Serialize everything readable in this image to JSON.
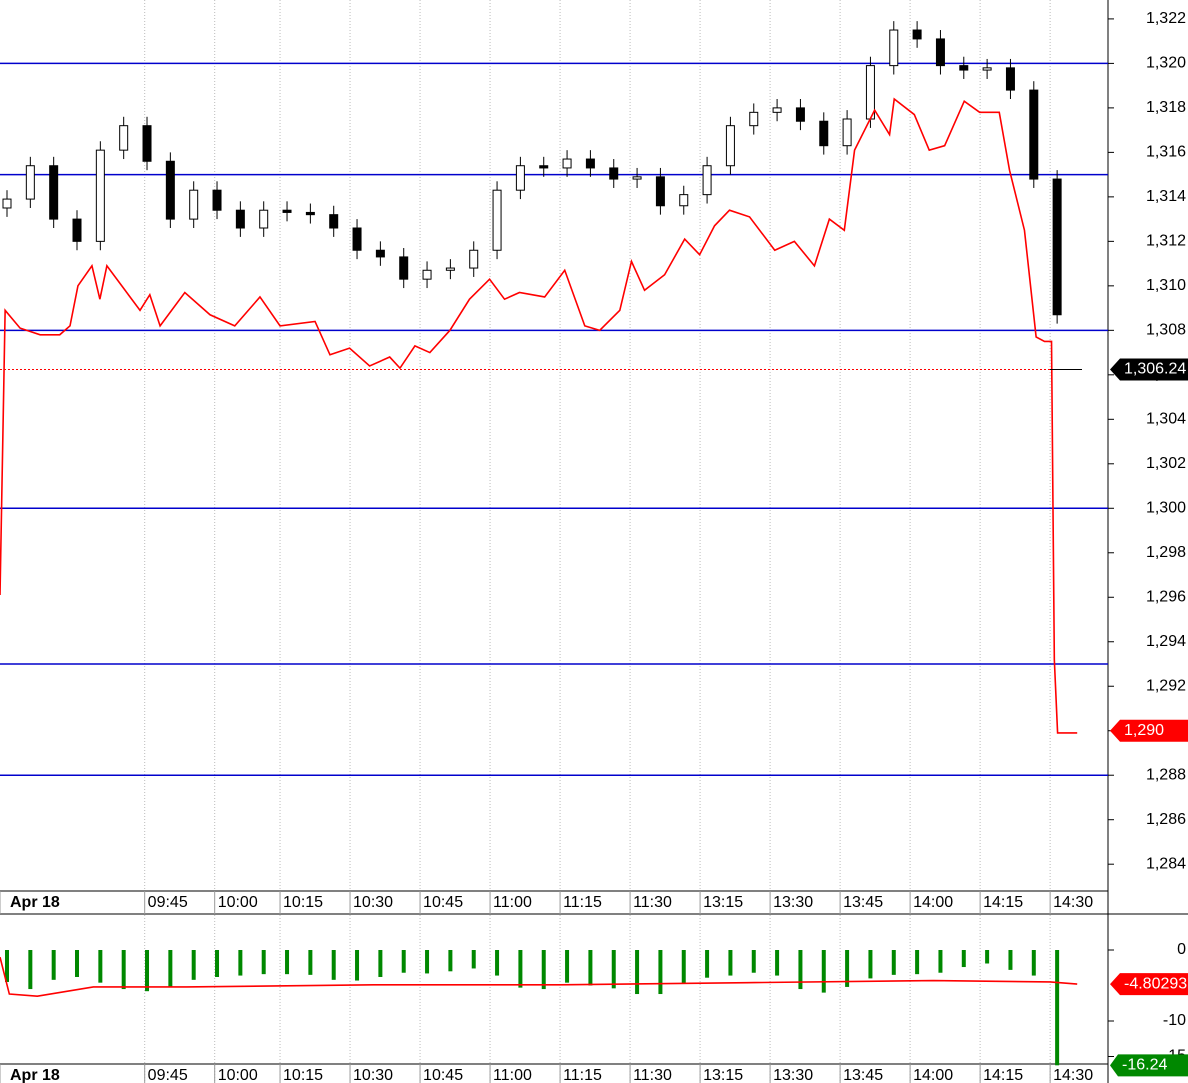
{
  "chart_data": [
    {
      "type": "candlestick",
      "x": [
        1.5,
        6.5,
        11.5,
        16.5,
        21.5,
        26.5,
        31.5,
        36.5,
        41.5,
        46.5,
        51.5,
        56.5,
        61.5,
        66.5,
        71.5,
        76.5,
        81.5,
        86.5,
        91.5,
        96.5,
        101.5,
        106.5,
        111.5,
        116.5,
        121.5,
        126.5,
        131.5,
        136.5,
        141.5,
        146.5,
        151.5,
        156.5,
        161.5,
        166.5,
        171.5,
        176.5,
        181.5,
        186.5,
        191.5,
        196.5,
        201.5,
        206.5,
        211.5,
        216.5,
        221.5,
        226.5
      ],
      "open": [
        1313.5,
        1313.9,
        1315.4,
        1313,
        1312,
        1316.1,
        1317.2,
        1315.6,
        1313,
        1314.3,
        1313.4,
        1312.6,
        1313.4,
        1313.3,
        1313.2,
        1312.6,
        1311.6,
        1311.3,
        1310.3,
        1310.7,
        1310.8,
        1311.6,
        1314.3,
        1315.4,
        1315.3,
        1315.7,
        1315.3,
        1314.8,
        1314.9,
        1313.6,
        1314.1,
        1315.4,
        1317.2,
        1317.8,
        1318,
        1317.4,
        1316.3,
        1317.5,
        1319.9,
        1321.5,
        1321.1,
        1319.9,
        1319.7,
        1319.8,
        1318.8,
        1314.8
      ],
      "high": [
        1314.3,
        1315.8,
        1315.8,
        1313.4,
        1316.5,
        1317.6,
        1317.6,
        1316,
        1314.7,
        1314.7,
        1313.8,
        1313.8,
        1313.8,
        1313.7,
        1313.6,
        1313,
        1312,
        1311.7,
        1311.1,
        1311.2,
        1312,
        1314.7,
        1315.8,
        1315.8,
        1316.1,
        1316.1,
        1315.7,
        1315.3,
        1315.3,
        1314.5,
        1315.8,
        1317.6,
        1318.2,
        1318.4,
        1318.4,
        1317.8,
        1317.9,
        1320.3,
        1321.9,
        1321.9,
        1321.5,
        1320.3,
        1320.2,
        1320.2,
        1319.2,
        1315.2
      ],
      "low": [
        1313.1,
        1313.5,
        1312.6,
        1311.6,
        1311.6,
        1315.7,
        1315.2,
        1312.6,
        1312.6,
        1313,
        1312.2,
        1312.2,
        1312.9,
        1312.8,
        1312.2,
        1311.2,
        1310.9,
        1309.9,
        1309.9,
        1310.3,
        1310.4,
        1311.2,
        1313.9,
        1314.9,
        1314.9,
        1314.9,
        1314.4,
        1314.4,
        1313.2,
        1313.2,
        1313.7,
        1315,
        1316.8,
        1317.4,
        1317,
        1315.9,
        1315.9,
        1317.1,
        1319.5,
        1320.7,
        1319.5,
        1319.3,
        1319.3,
        1318.4,
        1314.4,
        1308.3
      ],
      "close": [
        1313.9,
        1315.4,
        1313,
        1312,
        1316.1,
        1317.2,
        1315.6,
        1313,
        1314.3,
        1313.4,
        1312.6,
        1313.4,
        1313.3,
        1313.2,
        1312.6,
        1311.6,
        1311.3,
        1310.3,
        1310.7,
        1310.8,
        1311.6,
        1314.3,
        1315.4,
        1315.3,
        1315.7,
        1315.3,
        1314.8,
        1314.9,
        1313.6,
        1314.1,
        1315.4,
        1317.2,
        1317.8,
        1318,
        1317.4,
        1316.3,
        1317.5,
        1319.9,
        1321.5,
        1321.1,
        1319.9,
        1319.7,
        1319.8,
        1318.8,
        1314.8,
        1308.7
      ],
      "series": [
        {
          "color": "#ff0000",
          "x": [
            0,
            1.1,
            4.3,
            8.6,
            12.8,
            15,
            16.7,
            19.7,
            21.4,
            22.9,
            26.8,
            30,
            32.1,
            34.3,
            39.6,
            45,
            50.3,
            55.7,
            60,
            67.5,
            70.7,
            74.9,
            79.2,
            83.5,
            85.7,
            88.9,
            92.1,
            96.4,
            100.6,
            104.9,
            108.1,
            111.3,
            116.7,
            121,
            125.3,
            128.5,
            132.8,
            135.3,
            138.1,
            142.4,
            146.7,
            149.9,
            153.1,
            156.3,
            160.6,
            166,
            170.2,
            174.5,
            177.7,
            180.9,
            183.1,
            187.4,
            190.6,
            191.6,
            195.9,
            199.1,
            202.4,
            206.6,
            209.9,
            214.1,
            216.3,
            219.5,
            222,
            223.8,
            225.3,
            225.9,
            226.6,
            230.8
          ],
          "values": [
            1296.1,
            1308.9,
            1308.1,
            1307.8,
            1307.8,
            1308.2,
            1310,
            1310.9,
            1309.4,
            1310.9,
            1309.8,
            1308.9,
            1309.6,
            1308.2,
            1309.7,
            1308.7,
            1308.2,
            1309.5,
            1308.2,
            1308.4,
            1306.9,
            1307.2,
            1306.4,
            1306.8,
            1306.3,
            1307.3,
            1307,
            1308,
            1309.4,
            1310.3,
            1309.4,
            1309.7,
            1309.5,
            1310.7,
            1308.2,
            1308,
            1308.9,
            1311.1,
            1309.8,
            1310.5,
            1312.1,
            1311.4,
            1312.7,
            1313.4,
            1313.1,
            1311.6,
            1312,
            1310.9,
            1313,
            1312.5,
            1316.1,
            1317.9,
            1316.8,
            1318.4,
            1317.7,
            1316.1,
            1316.3,
            1318.3,
            1317.8,
            1317.8,
            1315.2,
            1312.5,
            1307.7,
            1307.5,
            1307.5,
            1293.2,
            1289.9,
            1289.9
          ]
        }
      ],
      "levels": [
        1320,
        1315,
        1308,
        1300,
        1293,
        1288
      ],
      "level_color": "#0000cc",
      "markers": [
        {
          "value": 1306.24,
          "label": "1,306.24",
          "color": "#000000"
        },
        {
          "value": 1290,
          "label": "1,290",
          "color": "#ff0000"
        }
      ],
      "xlim": [
        0,
        237.4
      ],
      "xticks": [
        {
          "value": 0,
          "label": "Apr 18"
        },
        {
          "value": 31,
          "label": "09:45"
        },
        {
          "value": 46,
          "label": "10:00"
        },
        {
          "value": 60,
          "label": "10:15"
        },
        {
          "value": 75,
          "label": "10:30"
        },
        {
          "value": 90,
          "label": "10:45"
        },
        {
          "value": 105,
          "label": "11:00"
        },
        {
          "value": 120,
          "label": "11:15"
        },
        {
          "value": 135,
          "label": "11:30"
        },
        {
          "value": 150,
          "label": "13:15"
        },
        {
          "value": 165,
          "label": "13:30"
        },
        {
          "value": 180,
          "label": "13:45"
        },
        {
          "value": 195,
          "label": "14:00"
        },
        {
          "value": 210,
          "label": "14:15"
        },
        {
          "value": 225,
          "label": "14:30"
        }
      ],
      "ylim": [
        1282.84,
        1322.85
      ],
      "yticks": [
        {
          "value": 1284,
          "label": "1,284"
        },
        {
          "value": 1286,
          "label": "1,286"
        },
        {
          "value": 1288,
          "label": "1,288"
        },
        {
          "value": 1290,
          "label": "1,290"
        },
        {
          "value": 1292,
          "label": "1,292"
        },
        {
          "value": 1294,
          "label": "1,294"
        },
        {
          "value": 1296,
          "label": "1,296"
        },
        {
          "value": 1298,
          "label": "1,298"
        },
        {
          "value": 1300,
          "label": "1,300"
        },
        {
          "value": 1302,
          "label": "1,302"
        },
        {
          "value": 1304,
          "label": "1,304"
        },
        {
          "value": 1306,
          "label": "1,306"
        },
        {
          "value": 1308,
          "label": "1,308"
        },
        {
          "value": 1310,
          "label": "1,310"
        },
        {
          "value": 1312,
          "label": "1,312"
        },
        {
          "value": 1314,
          "label": "1,314"
        },
        {
          "value": 1316,
          "label": "1,316"
        },
        {
          "value": 1318,
          "label": "1,318"
        },
        {
          "value": 1320,
          "label": "1,320"
        },
        {
          "value": 1322,
          "label": "1,322"
        }
      ],
      "grid": true
    },
    {
      "type": "bar",
      "color": "#008800",
      "x": [
        1.5,
        6.5,
        11.5,
        16.5,
        21.5,
        26.5,
        31.5,
        36.5,
        41.5,
        46.5,
        51.5,
        56.5,
        61.5,
        66.5,
        71.5,
        76.5,
        81.5,
        86.5,
        91.5,
        96.5,
        101.5,
        106.5,
        111.5,
        116.5,
        121.5,
        126.5,
        131.5,
        136.5,
        141.5,
        146.5,
        151.5,
        156.5,
        161.5,
        166.5,
        171.5,
        176.5,
        181.5,
        186.5,
        191.5,
        196.5,
        201.5,
        206.5,
        211.5,
        216.5,
        221.5,
        226.5
      ],
      "values": [
        -4.5,
        -5.5,
        -4.2,
        -3.8,
        -4.6,
        -5.5,
        -5.8,
        -5.2,
        -4.2,
        -3.8,
        -3.6,
        -3.4,
        -3.4,
        -3.5,
        -4.2,
        -4.3,
        -3.8,
        -3.2,
        -3.3,
        -3.0,
        -2.6,
        -3.6,
        -5.3,
        -5.5,
        -4.6,
        -5.0,
        -5.4,
        -6.2,
        -6.2,
        -4.7,
        -3.9,
        -3.6,
        -3.2,
        -3.6,
        -5.5,
        -6.0,
        -5.2,
        -4.0,
        -3.5,
        -3.4,
        -3.2,
        -2.4,
        -1.9,
        -2.8,
        -3.6,
        -16.24
      ],
      "value_labels": [
        null,
        null,
        null,
        null,
        null,
        null,
        null,
        null,
        null,
        null,
        null,
        null,
        null,
        null,
        null,
        null,
        null,
        null,
        null,
        null,
        null,
        null,
        null,
        null,
        null,
        null,
        null,
        null,
        null,
        null,
        null,
        null,
        null,
        null,
        null,
        null,
        null,
        null,
        null,
        null,
        null,
        null,
        null,
        null,
        null,
        "-16.24"
      ],
      "series": [
        {
          "color": "#ff0000",
          "x": [
            0,
            2,
            8,
            20,
            40,
            80,
            120,
            160,
            200,
            225,
            230.8
          ],
          "values": [
            -1,
            -6.2,
            -6.5,
            -5.2,
            -5.2,
            -4.9,
            -4.9,
            -4.6,
            -4.3,
            -4.5,
            -4.80293
          ]
        }
      ],
      "markers": [
        {
          "value": -4.80293,
          "label": "-4.80293",
          "color": "#ff0000"
        }
      ],
      "xlim": [
        0,
        237.4
      ],
      "xticks": [
        {
          "value": 0,
          "label": "Apr 18"
        },
        {
          "value": 31,
          "label": "09:45"
        },
        {
          "value": 46,
          "label": "10:00"
        },
        {
          "value": 60,
          "label": "10:15"
        },
        {
          "value": 75,
          "label": "10:30"
        },
        {
          "value": 90,
          "label": "10:45"
        },
        {
          "value": 105,
          "label": "11:00"
        },
        {
          "value": 120,
          "label": "11:15"
        },
        {
          "value": 135,
          "label": "11:30"
        },
        {
          "value": 150,
          "label": "13:15"
        },
        {
          "value": 165,
          "label": "13:30"
        },
        {
          "value": 180,
          "label": "13:45"
        },
        {
          "value": 195,
          "label": "14:00"
        },
        {
          "value": 210,
          "label": "14:15"
        },
        {
          "value": 225,
          "label": "14:30"
        }
      ],
      "ylim": [
        -18.73,
        4.93
      ],
      "yticks": [
        0,
        -10,
        -15
      ],
      "grid": true
    }
  ]
}
